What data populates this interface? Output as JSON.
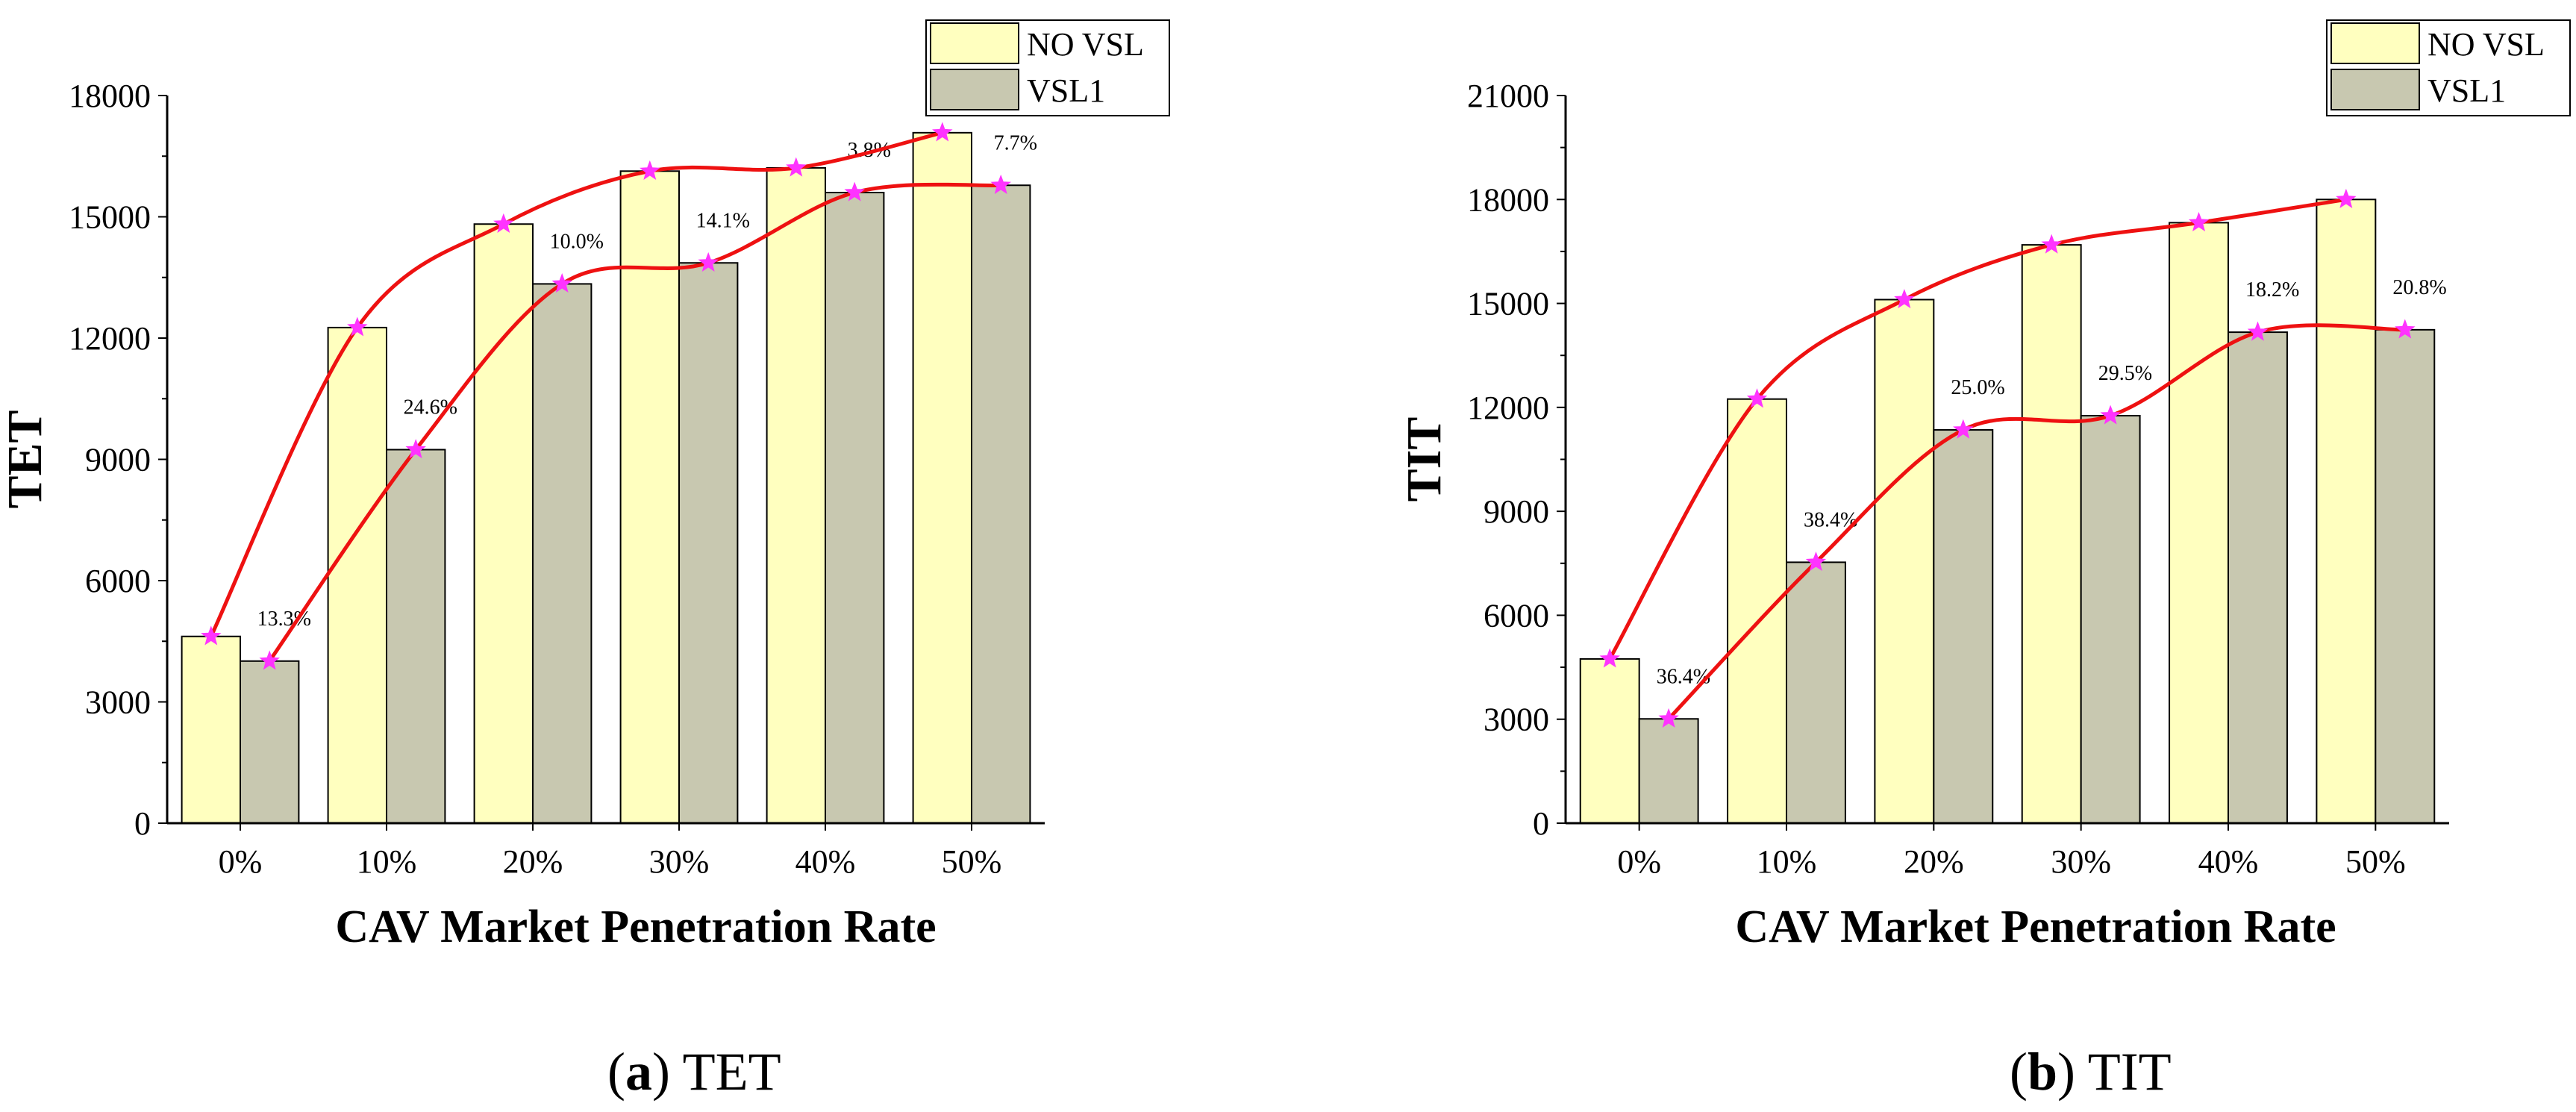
{
  "colors": {
    "no_vsl": "#ffffbf",
    "vsl1": "#c8c8b0",
    "curve": "#ee1111",
    "marker": "#ff33ff"
  },
  "chart_data": [
    {
      "type": "bar",
      "title": "",
      "categories": [
        "0%",
        "10%",
        "20%",
        "30%",
        "40%",
        "50%"
      ],
      "series": [
        {
          "name": "NO VSL",
          "values": [
            4620,
            12260,
            14820,
            16130,
            16210,
            17080
          ]
        },
        {
          "name": "VSL1",
          "values": [
            4010,
            9240,
            13340,
            13860,
            15600,
            15780
          ]
        }
      ],
      "reduction_labels": [
        "13.3%",
        "24.6%",
        "10.0%",
        "14.1%",
        "3.8%",
        "7.7%"
      ],
      "ylabel": "TET",
      "xlabel": "CAV Market Penetration Rate",
      "ylim": [
        0,
        18000
      ],
      "yticks": [
        "0",
        "3000",
        "6000",
        "9000",
        "12000",
        "15000",
        "18000"
      ],
      "legend": [
        "NO VSL",
        "VSL1"
      ],
      "legend_position": "top-right",
      "caption_prefix": "(a)",
      "caption_letter": "a",
      "caption_text": "TET"
    },
    {
      "type": "bar",
      "title": "",
      "categories": [
        "0%",
        "10%",
        "20%",
        "30%",
        "40%",
        "50%"
      ],
      "series": [
        {
          "name": "NO VSL",
          "values": [
            4740,
            12240,
            15110,
            16690,
            17330,
            18000
          ]
        },
        {
          "name": "VSL1",
          "values": [
            3010,
            7530,
            11350,
            11760,
            14170,
            14240
          ]
        }
      ],
      "reduction_labels": [
        "36.4%",
        "38.4%",
        "25.0%",
        "29.5%",
        "18.2%",
        "20.8%"
      ],
      "ylabel": "TIT",
      "xlabel": "CAV Market Penetration Rate",
      "ylim": [
        0,
        21000
      ],
      "yticks": [
        "0",
        "3000",
        "6000",
        "9000",
        "12000",
        "15000",
        "18000",
        "21000"
      ],
      "legend": [
        "NO VSL",
        "VSL1"
      ],
      "legend_position": "top-right",
      "caption_prefix": "(b)",
      "caption_letter": "b",
      "caption_text": "TIT"
    }
  ]
}
